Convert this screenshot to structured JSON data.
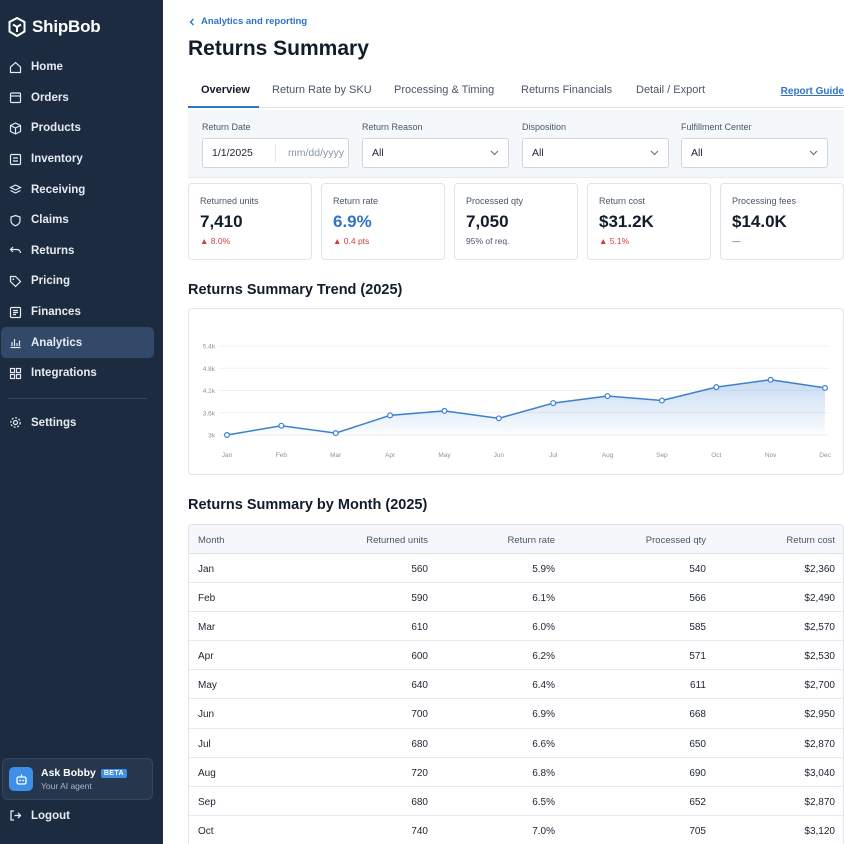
{
  "brand": {
    "name": "ShipBob"
  },
  "sidebar": {
    "items": [
      {
        "label": "Home",
        "icon": "home-icon"
      },
      {
        "label": "Orders",
        "icon": "orders-icon"
      },
      {
        "label": "Products",
        "icon": "products-icon"
      },
      {
        "label": "Inventory",
        "icon": "inventory-icon"
      },
      {
        "label": "Receiving",
        "icon": "receiving-icon"
      },
      {
        "label": "Claims",
        "icon": "claims-icon"
      },
      {
        "label": "Returns",
        "icon": "returns-icon"
      },
      {
        "label": "Pricing",
        "icon": "pricing-icon"
      },
      {
        "label": "Finances",
        "icon": "finances-icon"
      },
      {
        "label": "Analytics",
        "icon": "analytics-icon",
        "active": true
      },
      {
        "label": "Integrations",
        "icon": "integrations-icon"
      }
    ],
    "settings": "Settings",
    "ask_bobby": {
      "title": "Ask Bobby",
      "badge": "BETA",
      "subtitle": "Your AI agent"
    },
    "logout": "Logout"
  },
  "header": {
    "breadcrumb": "Analytics and reporting",
    "title": "Returns Summary"
  },
  "tabs": [
    {
      "label": "Overview",
      "active": true
    },
    {
      "label": "Return Rate by SKU"
    },
    {
      "label": "Processing & Timing"
    },
    {
      "label": "Returns Financials"
    },
    {
      "label": "Detail / Export"
    }
  ],
  "report_guide": "Report Guide",
  "filters": {
    "return_date": {
      "label": "Return Date",
      "value": "1/1/2025",
      "placeholder": "mm/dd/yyyy"
    },
    "return_reason": {
      "label": "Return Reason",
      "value": "All"
    },
    "disposition": {
      "label": "Disposition",
      "value": "All"
    },
    "fulfillment_center": {
      "label": "Fulfillment Center",
      "value": "All"
    }
  },
  "kpis": [
    {
      "label": "Returned units",
      "value": "7,410",
      "sub": "▲ 8.0%",
      "sub_color": "red"
    },
    {
      "label": "Return rate",
      "value": "6.9%",
      "sub": "▲ 0.4 pts",
      "sub_color": "red",
      "value_color": "blue"
    },
    {
      "label": "Processed qty",
      "value": "7,050",
      "sub": "95% of req."
    },
    {
      "label": "Return cost",
      "value": "$31.2K",
      "sub": "▲ 5.1%",
      "sub_color": "red"
    },
    {
      "label": "Processing fees",
      "value": "$14.0K",
      "sub": "—"
    }
  ],
  "trend_title": "Returns Summary Trend (2025)",
  "chart_data": {
    "type": "area",
    "title": "Returns Summary Trend (2025)",
    "categories": [
      "Jan",
      "Feb",
      "Mar",
      "Apr",
      "May",
      "Jun",
      "Jul",
      "Aug",
      "Sep",
      "Oct",
      "Nov",
      "Dec"
    ],
    "values": [
      3000,
      3250,
      3050,
      3530,
      3650,
      3450,
      3860,
      4050,
      3930,
      4290,
      4490,
      4270
    ],
    "y_ticks": [
      "3k",
      "3.6k",
      "4.2k",
      "4.8k",
      "5.4k"
    ],
    "y_tick_values": [
      3000,
      3600,
      4200,
      4800,
      5400
    ],
    "ylim": [
      3000,
      5400
    ],
    "grid": true,
    "line_color": "#3b7fcf"
  },
  "table": {
    "title": "Returns Summary by Month (2025)",
    "columns": [
      "Month",
      "Returned units",
      "Return rate",
      "Processed qty",
      "Return cost"
    ],
    "rows": [
      [
        "Jan",
        "560",
        "5.9%",
        "540",
        "$2,360"
      ],
      [
        "Feb",
        "590",
        "6.1%",
        "566",
        "$2,490"
      ],
      [
        "Mar",
        "610",
        "6.0%",
        "585",
        "$2,570"
      ],
      [
        "Apr",
        "600",
        "6.2%",
        "571",
        "$2,530"
      ],
      [
        "May",
        "640",
        "6.4%",
        "611",
        "$2,700"
      ],
      [
        "Jun",
        "700",
        "6.9%",
        "668",
        "$2,950"
      ],
      [
        "Jul",
        "680",
        "6.6%",
        "650",
        "$2,870"
      ],
      [
        "Aug",
        "720",
        "6.8%",
        "690",
        "$3,040"
      ],
      [
        "Sep",
        "680",
        "6.5%",
        "652",
        "$2,870"
      ],
      [
        "Oct",
        "740",
        "7.0%",
        "705",
        "$3,120"
      ]
    ]
  }
}
